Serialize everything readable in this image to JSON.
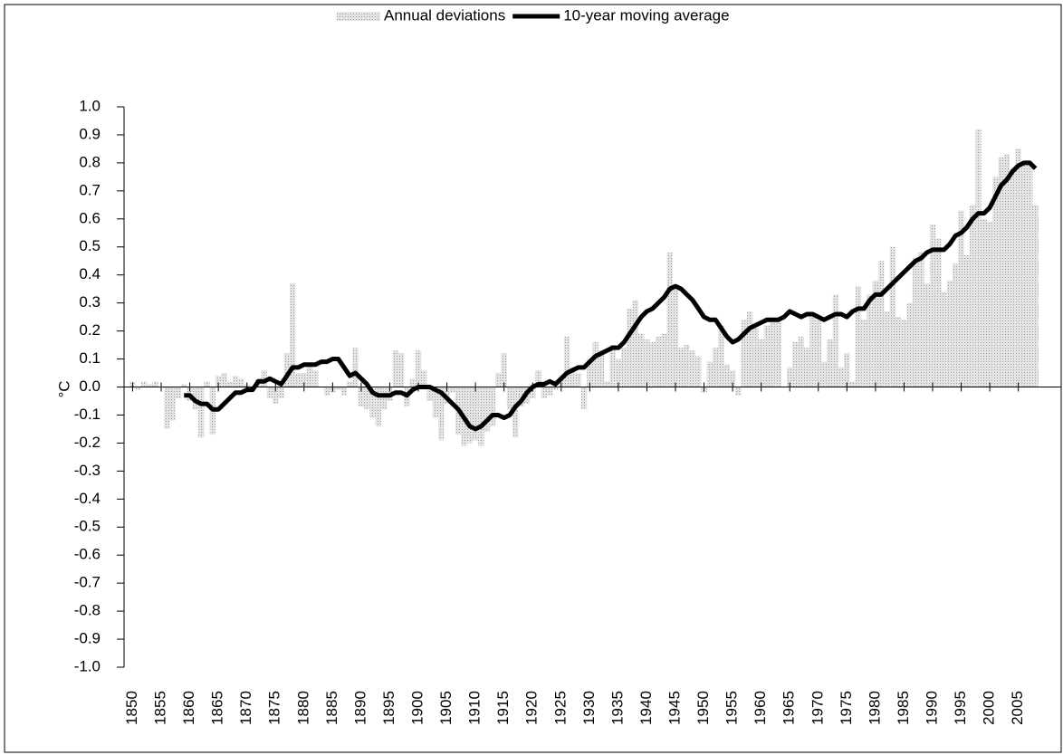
{
  "chart_data": {
    "type": "bar-line",
    "y_label": "°C",
    "legend": "top",
    "x": [
      1850,
      1851,
      1852,
      1853,
      1854,
      1855,
      1856,
      1857,
      1858,
      1859,
      1860,
      1861,
      1862,
      1863,
      1864,
      1865,
      1866,
      1867,
      1868,
      1869,
      1870,
      1871,
      1872,
      1873,
      1874,
      1875,
      1876,
      1877,
      1878,
      1879,
      1880,
      1881,
      1882,
      1883,
      1884,
      1885,
      1886,
      1887,
      1888,
      1889,
      1890,
      1891,
      1892,
      1893,
      1894,
      1895,
      1896,
      1897,
      1898,
      1899,
      1900,
      1901,
      1902,
      1903,
      1904,
      1905,
      1906,
      1907,
      1908,
      1909,
      1910,
      1911,
      1912,
      1913,
      1914,
      1915,
      1916,
      1917,
      1918,
      1919,
      1920,
      1921,
      1922,
      1923,
      1924,
      1925,
      1926,
      1927,
      1928,
      1929,
      1930,
      1931,
      1932,
      1933,
      1934,
      1935,
      1936,
      1937,
      1938,
      1939,
      1940,
      1941,
      1942,
      1943,
      1944,
      1945,
      1946,
      1947,
      1948,
      1949,
      1950,
      1951,
      1952,
      1953,
      1954,
      1955,
      1956,
      1957,
      1958,
      1959,
      1960,
      1961,
      1962,
      1963,
      1964,
      1965,
      1966,
      1967,
      1968,
      1969,
      1970,
      1971,
      1972,
      1973,
      1974,
      1975,
      1976,
      1977,
      1978,
      1979,
      1980,
      1981,
      1982,
      1983,
      1984,
      1985,
      1986,
      1987,
      1988,
      1989,
      1990,
      1991,
      1992,
      1993,
      1994,
      1995,
      1996,
      1997,
      1998,
      1999,
      2000,
      2001,
      2002,
      2003,
      2004,
      2005,
      2006,
      2007,
      2008
    ],
    "series": [
      {
        "name": "Annual deviations",
        "kind": "bar",
        "color": "#c8c8c8",
        "values": [
          0.02,
          -0.01,
          0.02,
          0.01,
          0.02,
          0.0,
          -0.15,
          -0.12,
          -0.04,
          0.01,
          -0.05,
          -0.08,
          -0.18,
          0.02,
          -0.17,
          0.04,
          0.05,
          0.02,
          0.04,
          0.03,
          0.01,
          -0.01,
          0.03,
          0.06,
          -0.04,
          -0.06,
          -0.04,
          0.12,
          0.37,
          0.05,
          0.05,
          0.08,
          0.06,
          0.0,
          -0.03,
          -0.02,
          -0.01,
          -0.03,
          0.02,
          0.14,
          -0.07,
          -0.08,
          -0.11,
          -0.14,
          -0.08,
          -0.05,
          0.13,
          0.12,
          -0.07,
          0.03,
          0.13,
          0.06,
          -0.05,
          -0.11,
          -0.19,
          -0.06,
          -0.02,
          -0.17,
          -0.21,
          -0.2,
          -0.19,
          -0.21,
          -0.16,
          -0.14,
          0.05,
          0.12,
          -0.08,
          -0.18,
          -0.07,
          -0.06,
          -0.04,
          0.06,
          -0.04,
          -0.03,
          -0.01,
          0.03,
          0.18,
          0.07,
          0.05,
          -0.08,
          0.1,
          0.16,
          0.13,
          0.02,
          0.15,
          0.1,
          0.14,
          0.28,
          0.31,
          0.19,
          0.17,
          0.16,
          0.18,
          0.19,
          0.48,
          0.36,
          0.14,
          0.15,
          0.13,
          0.11,
          -0.02,
          0.09,
          0.14,
          0.22,
          0.08,
          0.06,
          -0.03,
          0.24,
          0.27,
          0.21,
          0.17,
          0.22,
          0.24,
          0.24,
          0.0,
          0.07,
          0.16,
          0.18,
          0.14,
          0.26,
          0.24,
          0.09,
          0.17,
          0.33,
          0.07,
          0.12,
          0.02,
          0.36,
          0.24,
          0.33,
          0.38,
          0.45,
          0.27,
          0.5,
          0.25,
          0.24,
          0.3,
          0.46,
          0.48,
          0.37,
          0.58,
          0.53,
          0.34,
          0.38,
          0.44,
          0.63,
          0.47,
          0.65,
          0.92,
          0.6,
          0.59,
          0.75,
          0.82,
          0.83,
          0.77,
          0.85,
          0.8,
          0.79,
          0.65
        ]
      },
      {
        "name": "10-year moving average",
        "kind": "line",
        "color": "#000000",
        "values": [
          null,
          null,
          null,
          null,
          null,
          null,
          null,
          null,
          null,
          -0.03,
          -0.03,
          -0.05,
          -0.06,
          -0.06,
          -0.08,
          -0.08,
          -0.06,
          -0.04,
          -0.02,
          -0.02,
          -0.01,
          -0.01,
          0.02,
          0.02,
          0.03,
          0.02,
          0.01,
          0.04,
          0.07,
          0.07,
          0.08,
          0.08,
          0.08,
          0.09,
          0.09,
          0.1,
          0.1,
          0.07,
          0.04,
          0.05,
          0.03,
          0.01,
          -0.02,
          -0.03,
          -0.03,
          -0.03,
          -0.02,
          -0.02,
          -0.03,
          -0.01,
          0.0,
          0.0,
          0.0,
          -0.01,
          -0.02,
          -0.04,
          -0.06,
          -0.08,
          -0.11,
          -0.14,
          -0.15,
          -0.14,
          -0.12,
          -0.1,
          -0.1,
          -0.11,
          -0.1,
          -0.07,
          -0.05,
          -0.02,
          0.0,
          0.01,
          0.01,
          0.02,
          0.01,
          0.03,
          0.05,
          0.06,
          0.07,
          0.07,
          0.09,
          0.11,
          0.12,
          0.13,
          0.14,
          0.14,
          0.16,
          0.19,
          0.22,
          0.25,
          0.27,
          0.28,
          0.3,
          0.32,
          0.35,
          0.36,
          0.35,
          0.33,
          0.31,
          0.28,
          0.25,
          0.24,
          0.24,
          0.21,
          0.18,
          0.16,
          0.17,
          0.19,
          0.21,
          0.22,
          0.23,
          0.24,
          0.24,
          0.24,
          0.25,
          0.27,
          0.26,
          0.25,
          0.26,
          0.26,
          0.25,
          0.24,
          0.25,
          0.26,
          0.26,
          0.25,
          0.27,
          0.28,
          0.28,
          0.31,
          0.33,
          0.33,
          0.35,
          0.37,
          0.39,
          0.41,
          0.43,
          0.45,
          0.46,
          0.48,
          0.49,
          0.49,
          0.49,
          0.51,
          0.54,
          0.55,
          0.57,
          0.6,
          0.62,
          0.62,
          0.64,
          0.68,
          0.72,
          0.74,
          0.77,
          0.79,
          0.8,
          0.8,
          0.78
        ]
      }
    ],
    "xlim": [
      1848.5,
      2012.5
    ],
    "xticks": [
      1850,
      1855,
      1860,
      1865,
      1870,
      1875,
      1880,
      1885,
      1890,
      1895,
      1900,
      1905,
      1910,
      1915,
      1920,
      1925,
      1930,
      1935,
      1940,
      1945,
      1950,
      1955,
      1960,
      1965,
      1970,
      1975,
      1980,
      1985,
      1990,
      1995,
      2000,
      2005
    ],
    "ylim": [
      -1,
      1
    ],
    "yticks": [
      {
        "value": 1,
        "label": "1.0"
      },
      {
        "value": 0.9,
        "label": "0.9"
      },
      {
        "value": 0.8,
        "label": "0.8"
      },
      {
        "value": 0.7,
        "label": "0.7"
      },
      {
        "value": 0.6,
        "label": "0.6"
      },
      {
        "value": 0.5,
        "label": "0.5"
      },
      {
        "value": 0.4,
        "label": "0.4"
      },
      {
        "value": 0.3,
        "label": "0.3"
      },
      {
        "value": 0.2,
        "label": "0.2"
      },
      {
        "value": 0.1,
        "label": "0.1"
      },
      {
        "value": 0,
        "label": "0.0"
      },
      {
        "value": -0.1,
        "label": "-0.1"
      },
      {
        "value": -0.2,
        "label": "-0.2"
      },
      {
        "value": -0.3,
        "label": "-0.3"
      },
      {
        "value": -0.4,
        "label": "-0.4"
      },
      {
        "value": -0.5,
        "label": "-0.5"
      },
      {
        "value": -0.6,
        "label": "-0.6"
      },
      {
        "value": -0.7,
        "label": "-0.7"
      },
      {
        "value": -0.8,
        "label": "-0.8"
      },
      {
        "value": -0.9,
        "label": "-0.9"
      },
      {
        "value": -1,
        "label": "-1.0"
      }
    ]
  }
}
